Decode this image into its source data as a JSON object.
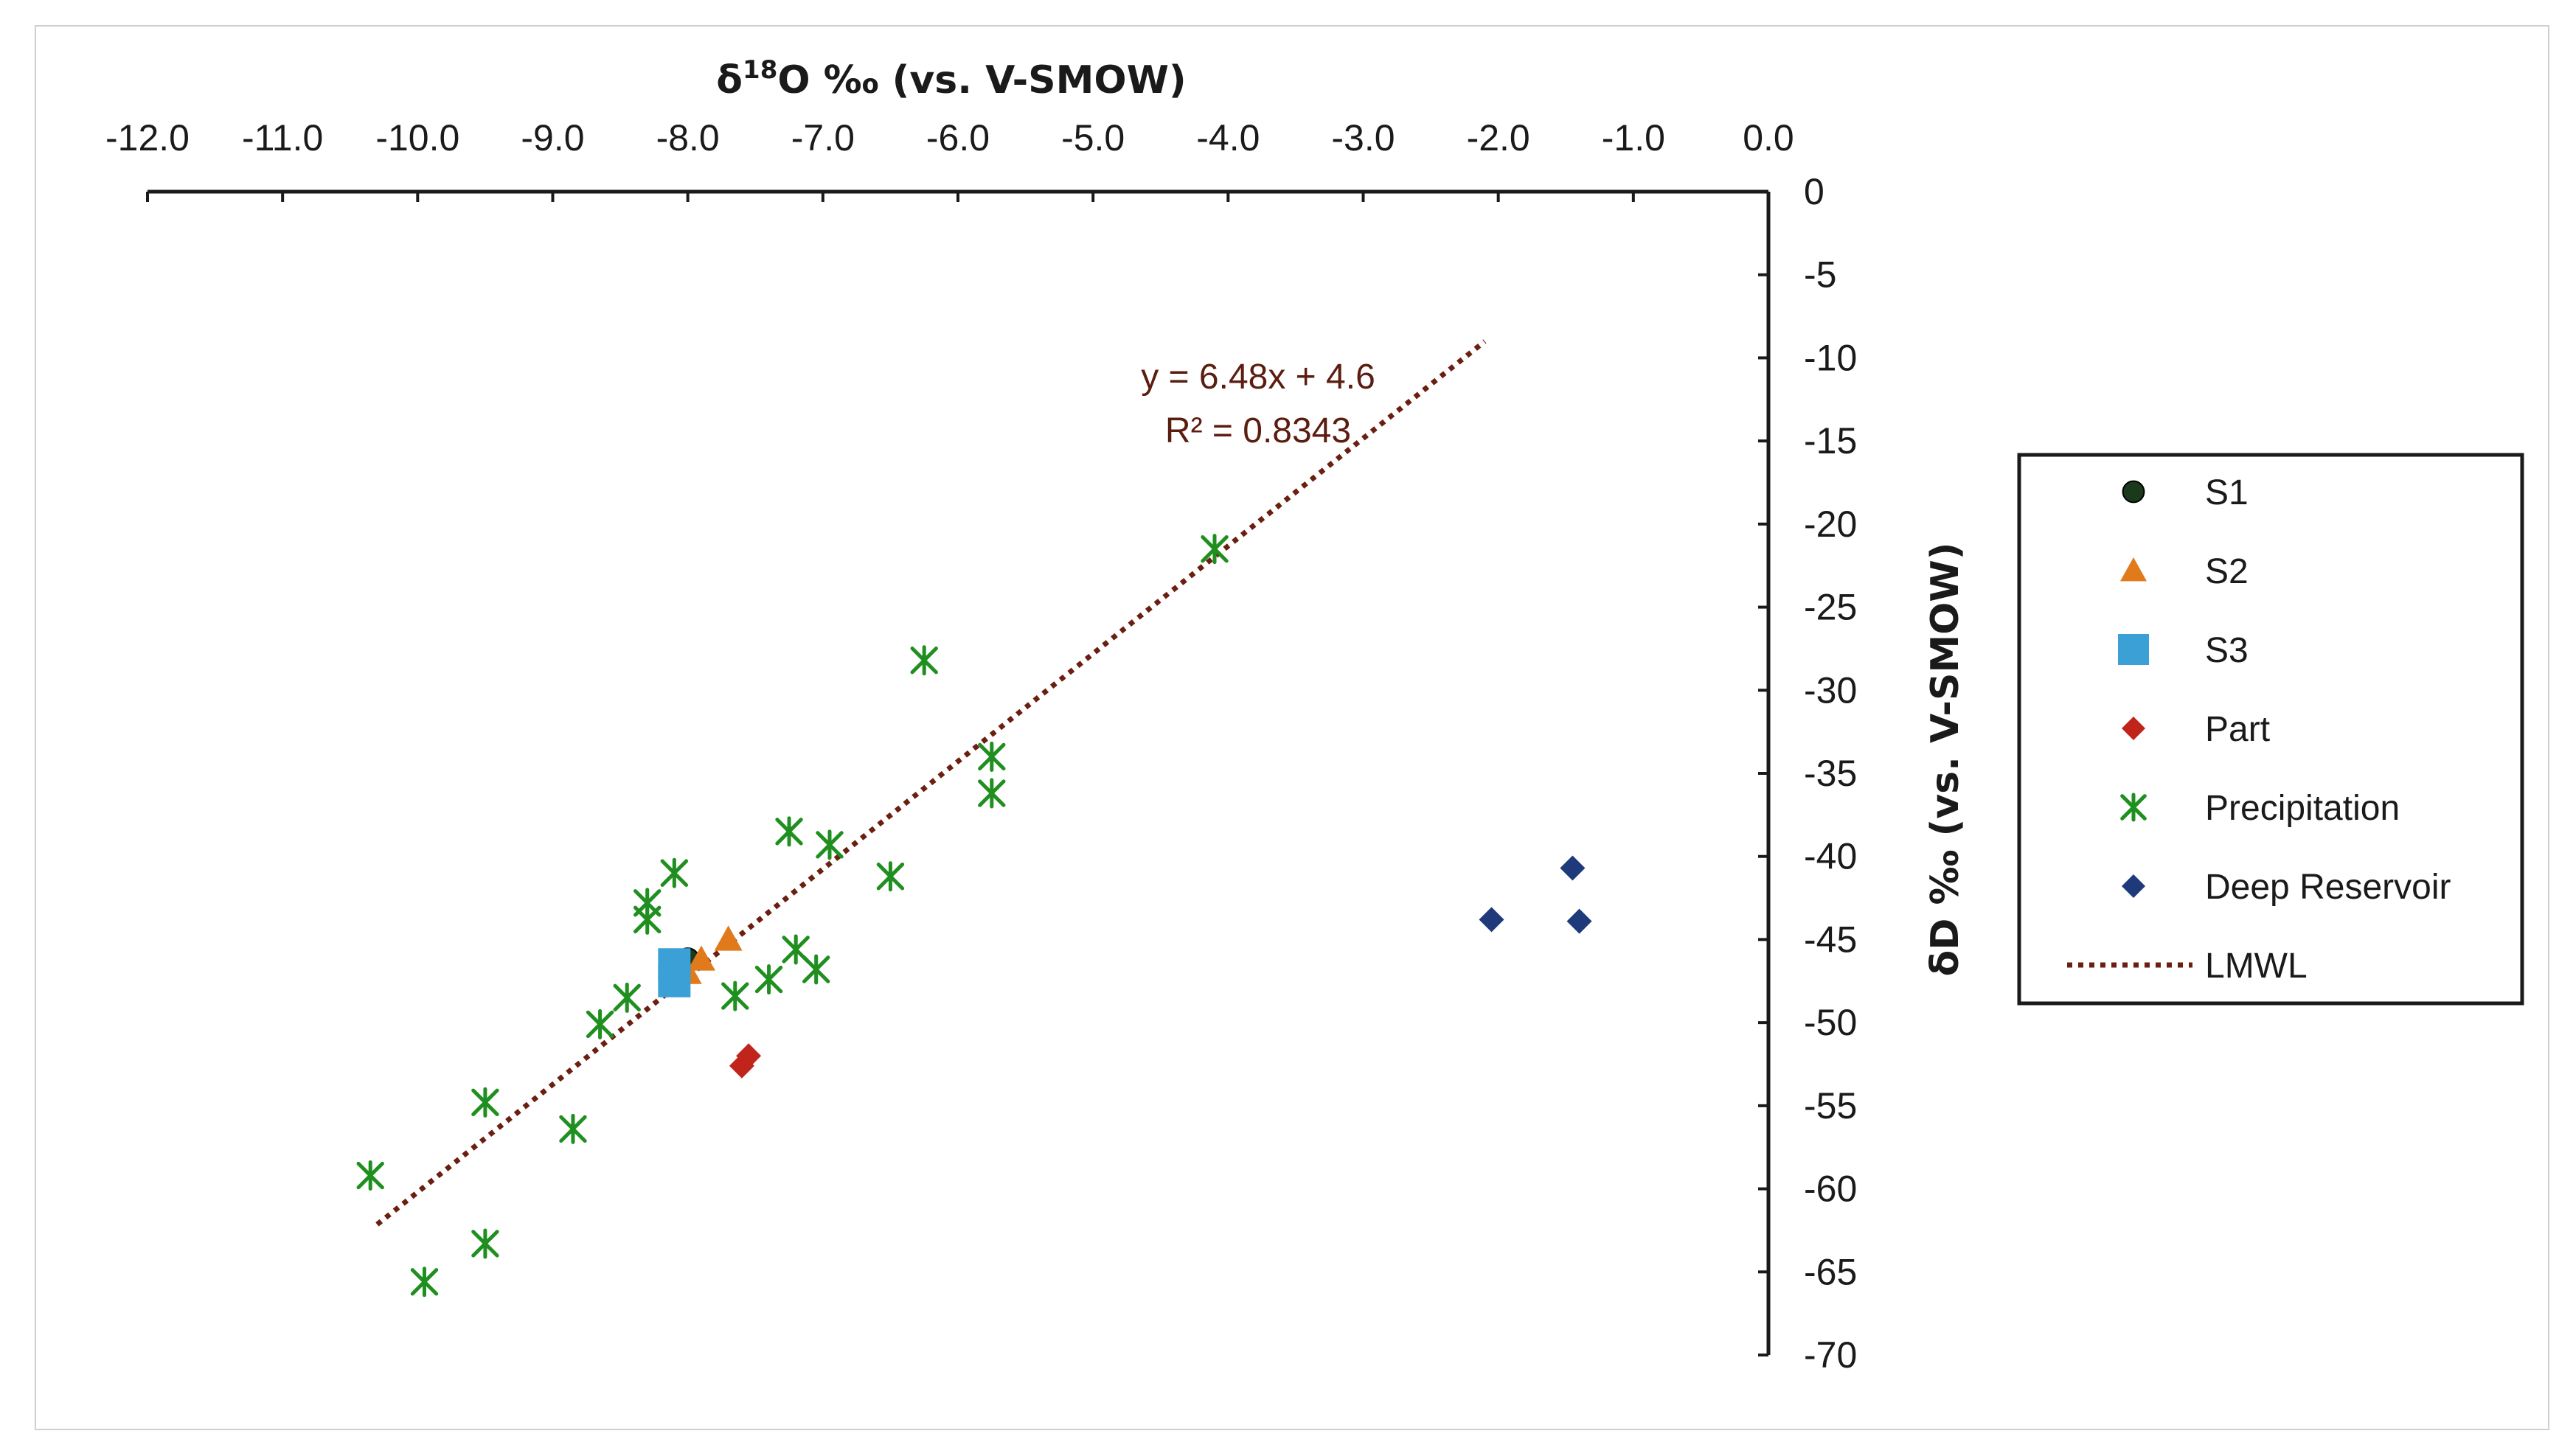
{
  "chart_data": {
    "type": "scatter",
    "x_axis": {
      "title_prefix": "δ",
      "title_sup": "18",
      "title_rest": "O ‰ (vs. V-SMOW)",
      "range": [
        -12,
        0
      ],
      "ticks": [
        -12,
        -11,
        -10,
        -9,
        -8,
        -7,
        -6,
        -5,
        -4,
        -3,
        -2,
        -1,
        0
      ],
      "tick_labels": [
        "-12.0",
        "-11.0",
        "-10.0",
        "-9.0",
        "-8.0",
        "-7.0",
        "-6.0",
        "-5.0",
        "-4.0",
        "-3.0",
        "-2.0",
        "-1.0",
        "0.0"
      ],
      "position": "top"
    },
    "y_axis": {
      "title": "δD ‰  (vs. V-SMOW)",
      "range": [
        -70,
        0
      ],
      "ticks": [
        0,
        -5,
        -10,
        -15,
        -20,
        -25,
        -30,
        -35,
        -40,
        -45,
        -50,
        -55,
        -60,
        -65,
        -70
      ],
      "tick_labels": [
        "0",
        "-5",
        "-10",
        "-15",
        "-20",
        "-25",
        "-30",
        "-35",
        "-40",
        "-45",
        "-50",
        "-55",
        "-60",
        "-65",
        "-70"
      ],
      "position": "right"
    },
    "series": [
      {
        "name": "S1",
        "marker": "circle",
        "color": "#1b3a1b",
        "points": [
          [
            -8.0,
            -46.2
          ]
        ]
      },
      {
        "name": "S2",
        "marker": "triangle",
        "color": "#e07a1a",
        "points": [
          [
            -7.7,
            -45.0
          ],
          [
            -7.9,
            -46.2
          ],
          [
            -8.0,
            -47.0
          ]
        ]
      },
      {
        "name": "S3",
        "marker": "square",
        "color": "#3ba0d6",
        "points": [
          [
            -8.1,
            -46.5
          ],
          [
            -8.1,
            -47.5
          ]
        ]
      },
      {
        "name": "Part",
        "marker": "diamond",
        "color": "#c0241a",
        "points": [
          [
            -7.55,
            -52.0
          ],
          [
            -7.6,
            -52.6
          ]
        ]
      },
      {
        "name": "Precipitation",
        "marker": "asterisk",
        "color": "#1f8f1f",
        "points": [
          [
            -4.1,
            -21.5
          ],
          [
            -6.25,
            -28.2
          ],
          [
            -5.75,
            -34.0
          ],
          [
            -5.75,
            -36.2
          ],
          [
            -7.25,
            -38.5
          ],
          [
            -6.95,
            -39.3
          ],
          [
            -6.5,
            -41.2
          ],
          [
            -8.1,
            -41.0
          ],
          [
            -8.3,
            -42.8
          ],
          [
            -8.3,
            -43.8
          ],
          [
            -7.2,
            -45.6
          ],
          [
            -7.05,
            -46.8
          ],
          [
            -7.4,
            -47.4
          ],
          [
            -7.65,
            -48.4
          ],
          [
            -8.45,
            -48.5
          ],
          [
            -8.65,
            -50.1
          ],
          [
            -9.5,
            -54.8
          ],
          [
            -8.85,
            -56.4
          ],
          [
            -10.35,
            -59.2
          ],
          [
            -9.5,
            -63.3
          ],
          [
            -9.95,
            -65.6
          ]
        ]
      },
      {
        "name": "Deep Reservoir",
        "marker": "diamond",
        "color": "#1f3a7a",
        "points": [
          [
            -1.45,
            -40.7
          ],
          [
            -2.05,
            -43.8
          ],
          [
            -1.4,
            -43.9
          ]
        ]
      }
    ],
    "trendline": {
      "name": "LMWL",
      "style": "dotted",
      "color": "#6b1f10",
      "slope": 6.48,
      "intercept": 4.6,
      "x_range": [
        -10.3,
        -2.1
      ],
      "equation_label": "y = 6.48x + 4.6",
      "r2_label": "R² = 0.8343"
    },
    "legend": {
      "placement": "right",
      "entries": [
        "S1",
        "S2",
        "S3",
        "Part",
        "Precipitation",
        "Deep Reservoir",
        "LMWL"
      ]
    }
  }
}
